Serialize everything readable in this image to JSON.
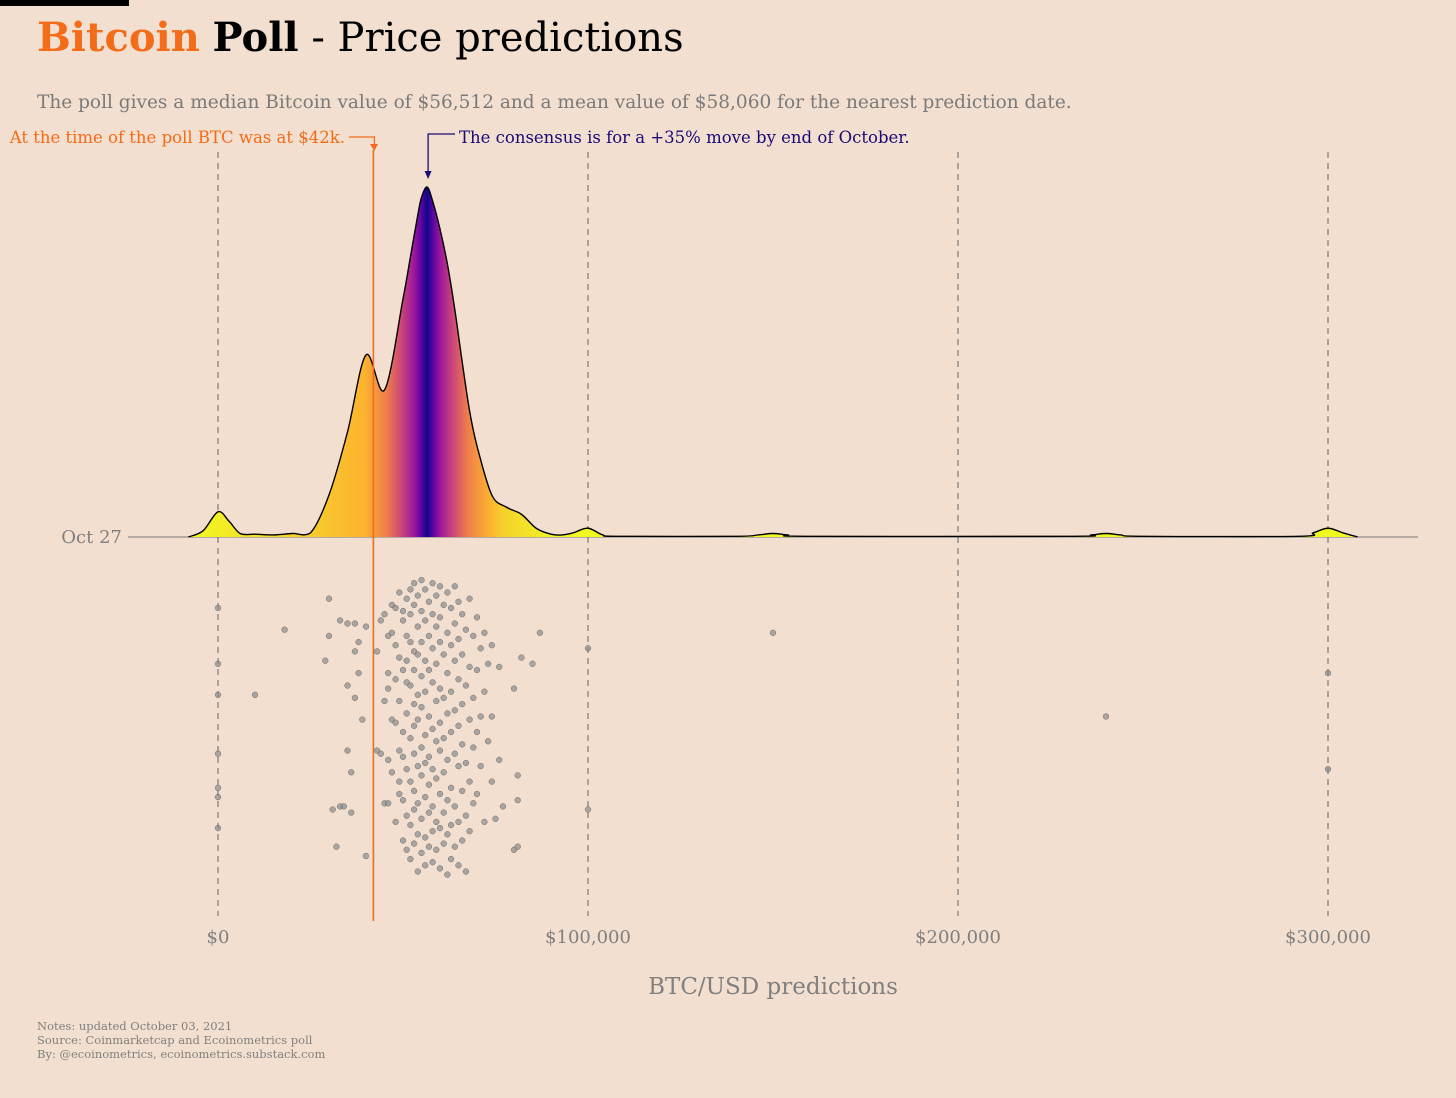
{
  "title": {
    "part1": "Bitcoin",
    "part2": "Poll",
    "part3": "- Price predictions"
  },
  "subtitle": "The poll gives a median Bitcoin value of $56,512 and a mean value of $58,060 for the nearest prediction date.",
  "notes": [
    "Notes: updated October 03, 2021",
    "Source: Coinmarketcap and Ecoinometrics poll",
    "By: @ecoinometrics, ecoinometrics.substack.com"
  ],
  "colors": {
    "brand": "#f26c19",
    "consensus": "#1a0a78",
    "grid": "#777777",
    "text": "#808080"
  },
  "chart_data": {
    "type": "density",
    "title": "Bitcoin Poll - Price predictions",
    "xlabel": "BTC/USD predictions",
    "ylabel": "",
    "xlim": [
      -24000,
      324000
    ],
    "x_ticks": [
      0,
      100000,
      200000,
      300000
    ],
    "x_tick_labels": [
      "$0",
      "$100,000",
      "$200,000",
      "$300,000"
    ],
    "y_category": "Oct 27",
    "grid": "vertical dashed",
    "current_price": 42000,
    "median": 56512,
    "mean": 58060,
    "annotations": {
      "current_price": "At the time of the poll BTC was at $42k.",
      "consensus": "The consensus is  for a +35% move by end of October."
    },
    "density": {
      "x": [
        -8000,
        -4000,
        0,
        3000,
        6000,
        10000,
        15000,
        20000,
        25000,
        30000,
        35000,
        40000,
        45000,
        50000,
        52000,
        54000,
        55000,
        56512,
        58000,
        60000,
        62000,
        64000,
        66000,
        68000,
        70000,
        74000,
        78000,
        82000,
        86000,
        90000,
        93000,
        96000,
        100000,
        104000,
        108000,
        140000,
        146000,
        150000,
        154000,
        160000,
        230000,
        236000,
        240000,
        244000,
        250000,
        292000,
        296000,
        300000,
        304000,
        308000
      ],
      "y": [
        0,
        0.018,
        0.072,
        0.045,
        0.01,
        0.008,
        0.006,
        0.01,
        0.012,
        0.12,
        0.3,
        0.52,
        0.42,
        0.68,
        0.8,
        0.92,
        0.97,
        1.0,
        0.96,
        0.88,
        0.78,
        0.65,
        0.5,
        0.36,
        0.26,
        0.12,
        0.085,
        0.065,
        0.025,
        0.008,
        0.006,
        0.012,
        0.025,
        0.006,
        0.002,
        0.002,
        0.006,
        0.01,
        0.006,
        0.002,
        0.002,
        0.006,
        0.01,
        0.006,
        0.002,
        0.002,
        0.012,
        0.025,
        0.012,
        0
      ]
    },
    "points": [
      {
        "x": 0,
        "y": 0.1
      },
      {
        "x": 0,
        "y": 0.28
      },
      {
        "x": 0,
        "y": 0.38
      },
      {
        "x": 0,
        "y": 0.57
      },
      {
        "x": 0,
        "y": 0.68
      },
      {
        "x": 0,
        "y": 0.71
      },
      {
        "x": 0,
        "y": 0.81
      },
      {
        "x": 10000,
        "y": 0.38
      },
      {
        "x": 18000,
        "y": 0.17
      },
      {
        "x": 29000,
        "y": 0.27
      },
      {
        "x": 30000,
        "y": 0.07
      },
      {
        "x": 30000,
        "y": 0.19
      },
      {
        "x": 31000,
        "y": 0.75
      },
      {
        "x": 32000,
        "y": 0.87
      },
      {
        "x": 33000,
        "y": 0.14
      },
      {
        "x": 33000,
        "y": 0.74
      },
      {
        "x": 34000,
        "y": 0.74
      },
      {
        "x": 35000,
        "y": 0.15
      },
      {
        "x": 35000,
        "y": 0.56
      },
      {
        "x": 35000,
        "y": 0.35
      },
      {
        "x": 36000,
        "y": 0.63
      },
      {
        "x": 36000,
        "y": 0.76
      },
      {
        "x": 37000,
        "y": 0.24
      },
      {
        "x": 37000,
        "y": 0.39
      },
      {
        "x": 37000,
        "y": 0.15
      },
      {
        "x": 38000,
        "y": 0.31
      },
      {
        "x": 38000,
        "y": 0.21
      },
      {
        "x": 39000,
        "y": 0.46
      },
      {
        "x": 40000,
        "y": 0.9
      },
      {
        "x": 40000,
        "y": 0.16
      },
      {
        "x": 43000,
        "y": 0.24
      },
      {
        "x": 43000,
        "y": 0.56
      },
      {
        "x": 44000,
        "y": 0.14
      },
      {
        "x": 44000,
        "y": 0.57
      },
      {
        "x": 45000,
        "y": 0.12
      },
      {
        "x": 45000,
        "y": 0.4
      },
      {
        "x": 45000,
        "y": 0.73
      },
      {
        "x": 46000,
        "y": 0.19
      },
      {
        "x": 46000,
        "y": 0.31
      },
      {
        "x": 46000,
        "y": 0.36
      },
      {
        "x": 46000,
        "y": 0.59
      },
      {
        "x": 46000,
        "y": 0.73
      },
      {
        "x": 47000,
        "y": 0.09
      },
      {
        "x": 47000,
        "y": 0.18
      },
      {
        "x": 47000,
        "y": 0.46
      },
      {
        "x": 47000,
        "y": 0.63
      },
      {
        "x": 48000,
        "y": 0.1
      },
      {
        "x": 48000,
        "y": 0.22
      },
      {
        "x": 48000,
        "y": 0.33
      },
      {
        "x": 48000,
        "y": 0.47
      },
      {
        "x": 48000,
        "y": 0.79
      },
      {
        "x": 49000,
        "y": 0.05
      },
      {
        "x": 49000,
        "y": 0.26
      },
      {
        "x": 49000,
        "y": 0.4
      },
      {
        "x": 49000,
        "y": 0.56
      },
      {
        "x": 49000,
        "y": 0.66
      },
      {
        "x": 49000,
        "y": 0.7
      },
      {
        "x": 50000,
        "y": 0.11
      },
      {
        "x": 50000,
        "y": 0.14
      },
      {
        "x": 50000,
        "y": 0.3
      },
      {
        "x": 50000,
        "y": 0.5
      },
      {
        "x": 50000,
        "y": 0.58
      },
      {
        "x": 50000,
        "y": 0.72
      },
      {
        "x": 50000,
        "y": 0.85
      },
      {
        "x": 51000,
        "y": 0.07
      },
      {
        "x": 51000,
        "y": 0.19
      },
      {
        "x": 51000,
        "y": 0.27
      },
      {
        "x": 51000,
        "y": 0.34
      },
      {
        "x": 51000,
        "y": 0.44
      },
      {
        "x": 51000,
        "y": 0.62
      },
      {
        "x": 51000,
        "y": 0.77
      },
      {
        "x": 51000,
        "y": 0.88
      },
      {
        "x": 52000,
        "y": 0.04
      },
      {
        "x": 52000,
        "y": 0.12
      },
      {
        "x": 52000,
        "y": 0.21
      },
      {
        "x": 52000,
        "y": 0.35
      },
      {
        "x": 52000,
        "y": 0.52
      },
      {
        "x": 52000,
        "y": 0.66
      },
      {
        "x": 52000,
        "y": 0.8
      },
      {
        "x": 52000,
        "y": 0.91
      },
      {
        "x": 53000,
        "y": 0.02
      },
      {
        "x": 53000,
        "y": 0.09
      },
      {
        "x": 53000,
        "y": 0.24
      },
      {
        "x": 53000,
        "y": 0.3
      },
      {
        "x": 53000,
        "y": 0.41
      },
      {
        "x": 53000,
        "y": 0.48
      },
      {
        "x": 53000,
        "y": 0.57
      },
      {
        "x": 53000,
        "y": 0.69
      },
      {
        "x": 53000,
        "y": 0.75
      },
      {
        "x": 53000,
        "y": 0.86
      },
      {
        "x": 54000,
        "y": 0.06
      },
      {
        "x": 54000,
        "y": 0.16
      },
      {
        "x": 54000,
        "y": 0.25
      },
      {
        "x": 54000,
        "y": 0.38
      },
      {
        "x": 54000,
        "y": 0.46
      },
      {
        "x": 54000,
        "y": 0.61
      },
      {
        "x": 54000,
        "y": 0.73
      },
      {
        "x": 54000,
        "y": 0.83
      },
      {
        "x": 54000,
        "y": 0.95
      },
      {
        "x": 55000,
        "y": 0.01
      },
      {
        "x": 55000,
        "y": 0.11
      },
      {
        "x": 55000,
        "y": 0.21
      },
      {
        "x": 55000,
        "y": 0.32
      },
      {
        "x": 55000,
        "y": 0.42
      },
      {
        "x": 55000,
        "y": 0.55
      },
      {
        "x": 55000,
        "y": 0.64
      },
      {
        "x": 55000,
        "y": 0.78
      },
      {
        "x": 55000,
        "y": 0.89
      },
      {
        "x": 56000,
        "y": 0.04
      },
      {
        "x": 56000,
        "y": 0.14
      },
      {
        "x": 56000,
        "y": 0.27
      },
      {
        "x": 56000,
        "y": 0.37
      },
      {
        "x": 56000,
        "y": 0.51
      },
      {
        "x": 56000,
        "y": 0.6
      },
      {
        "x": 56000,
        "y": 0.71
      },
      {
        "x": 56000,
        "y": 0.84
      },
      {
        "x": 56000,
        "y": 0.93
      },
      {
        "x": 57000,
        "y": 0.08
      },
      {
        "x": 57000,
        "y": 0.19
      },
      {
        "x": 57000,
        "y": 0.3
      },
      {
        "x": 57000,
        "y": 0.45
      },
      {
        "x": 57000,
        "y": 0.58
      },
      {
        "x": 57000,
        "y": 0.67
      },
      {
        "x": 57000,
        "y": 0.76
      },
      {
        "x": 57000,
        "y": 0.87
      },
      {
        "x": 58000,
        "y": 0.02
      },
      {
        "x": 58000,
        "y": 0.12
      },
      {
        "x": 58000,
        "y": 0.23
      },
      {
        "x": 58000,
        "y": 0.34
      },
      {
        "x": 58000,
        "y": 0.49
      },
      {
        "x": 58000,
        "y": 0.62
      },
      {
        "x": 58000,
        "y": 0.74
      },
      {
        "x": 58000,
        "y": 0.82
      },
      {
        "x": 58000,
        "y": 0.92
      },
      {
        "x": 59000,
        "y": 0.06
      },
      {
        "x": 59000,
        "y": 0.16
      },
      {
        "x": 59000,
        "y": 0.28
      },
      {
        "x": 59000,
        "y": 0.4
      },
      {
        "x": 59000,
        "y": 0.53
      },
      {
        "x": 59000,
        "y": 0.65
      },
      {
        "x": 59000,
        "y": 0.79
      },
      {
        "x": 59000,
        "y": 0.88
      },
      {
        "x": 60000,
        "y": 0.03
      },
      {
        "x": 60000,
        "y": 0.13
      },
      {
        "x": 60000,
        "y": 0.21
      },
      {
        "x": 60000,
        "y": 0.36
      },
      {
        "x": 60000,
        "y": 0.47
      },
      {
        "x": 60000,
        "y": 0.56
      },
      {
        "x": 60000,
        "y": 0.7
      },
      {
        "x": 60000,
        "y": 0.81
      },
      {
        "x": 60000,
        "y": 0.94
      },
      {
        "x": 61000,
        "y": 0.09
      },
      {
        "x": 61000,
        "y": 0.25
      },
      {
        "x": 61000,
        "y": 0.39
      },
      {
        "x": 61000,
        "y": 0.52
      },
      {
        "x": 61000,
        "y": 0.63
      },
      {
        "x": 61000,
        "y": 0.76
      },
      {
        "x": 61000,
        "y": 0.86
      },
      {
        "x": 62000,
        "y": 0.05
      },
      {
        "x": 62000,
        "y": 0.18
      },
      {
        "x": 62000,
        "y": 0.31
      },
      {
        "x": 62000,
        "y": 0.44
      },
      {
        "x": 62000,
        "y": 0.59
      },
      {
        "x": 62000,
        "y": 0.72
      },
      {
        "x": 62000,
        "y": 0.83
      },
      {
        "x": 62000,
        "y": 0.96
      },
      {
        "x": 63000,
        "y": 0.1
      },
      {
        "x": 63000,
        "y": 0.22
      },
      {
        "x": 63000,
        "y": 0.37
      },
      {
        "x": 63000,
        "y": 0.5
      },
      {
        "x": 63000,
        "y": 0.68
      },
      {
        "x": 63000,
        "y": 0.8
      },
      {
        "x": 63000,
        "y": 0.91
      },
      {
        "x": 64000,
        "y": 0.03
      },
      {
        "x": 64000,
        "y": 0.15
      },
      {
        "x": 64000,
        "y": 0.27
      },
      {
        "x": 64000,
        "y": 0.43
      },
      {
        "x": 64000,
        "y": 0.57
      },
      {
        "x": 64000,
        "y": 0.74
      },
      {
        "x": 64000,
        "y": 0.87
      },
      {
        "x": 65000,
        "y": 0.08
      },
      {
        "x": 65000,
        "y": 0.2
      },
      {
        "x": 65000,
        "y": 0.33
      },
      {
        "x": 65000,
        "y": 0.48
      },
      {
        "x": 65000,
        "y": 0.61
      },
      {
        "x": 65000,
        "y": 0.79
      },
      {
        "x": 65000,
        "y": 0.93
      },
      {
        "x": 66000,
        "y": 0.12
      },
      {
        "x": 66000,
        "y": 0.25
      },
      {
        "x": 66000,
        "y": 0.41
      },
      {
        "x": 66000,
        "y": 0.54
      },
      {
        "x": 66000,
        "y": 0.69
      },
      {
        "x": 66000,
        "y": 0.85
      },
      {
        "x": 67000,
        "y": 0.17
      },
      {
        "x": 67000,
        "y": 0.35
      },
      {
        "x": 67000,
        "y": 0.6
      },
      {
        "x": 67000,
        "y": 0.77
      },
      {
        "x": 67000,
        "y": 0.95
      },
      {
        "x": 68000,
        "y": 0.07
      },
      {
        "x": 68000,
        "y": 0.29
      },
      {
        "x": 68000,
        "y": 0.46
      },
      {
        "x": 68000,
        "y": 0.66
      },
      {
        "x": 68000,
        "y": 0.82
      },
      {
        "x": 69000,
        "y": 0.19
      },
      {
        "x": 69000,
        "y": 0.39
      },
      {
        "x": 69000,
        "y": 0.55
      },
      {
        "x": 69000,
        "y": 0.73
      },
      {
        "x": 70000,
        "y": 0.13
      },
      {
        "x": 70000,
        "y": 0.3
      },
      {
        "x": 70000,
        "y": 0.5
      },
      {
        "x": 70000,
        "y": 0.7
      },
      {
        "x": 71000,
        "y": 0.23
      },
      {
        "x": 71000,
        "y": 0.45
      },
      {
        "x": 71000,
        "y": 0.61
      },
      {
        "x": 72000,
        "y": 0.18
      },
      {
        "x": 72000,
        "y": 0.37
      },
      {
        "x": 72000,
        "y": 0.79
      },
      {
        "x": 73000,
        "y": 0.28
      },
      {
        "x": 73000,
        "y": 0.53
      },
      {
        "x": 74000,
        "y": 0.22
      },
      {
        "x": 74000,
        "y": 0.45
      },
      {
        "x": 74000,
        "y": 0.66
      },
      {
        "x": 75000,
        "y": 0.78
      },
      {
        "x": 76000,
        "y": 0.59
      },
      {
        "x": 76000,
        "y": 0.29
      },
      {
        "x": 77000,
        "y": 0.74
      },
      {
        "x": 80000,
        "y": 0.36
      },
      {
        "x": 80000,
        "y": 0.88
      },
      {
        "x": 81000,
        "y": 0.64
      },
      {
        "x": 81000,
        "y": 0.72
      },
      {
        "x": 81000,
        "y": 0.87
      },
      {
        "x": 82000,
        "y": 0.26
      },
      {
        "x": 85000,
        "y": 0.28
      },
      {
        "x": 87000,
        "y": 0.18
      },
      {
        "x": 100000,
        "y": 0.23
      },
      {
        "x": 100000,
        "y": 0.75
      },
      {
        "x": 150000,
        "y": 0.18
      },
      {
        "x": 240000,
        "y": 0.45
      },
      {
        "x": 300000,
        "y": 0.31
      },
      {
        "x": 300000,
        "y": 0.62
      }
    ]
  }
}
